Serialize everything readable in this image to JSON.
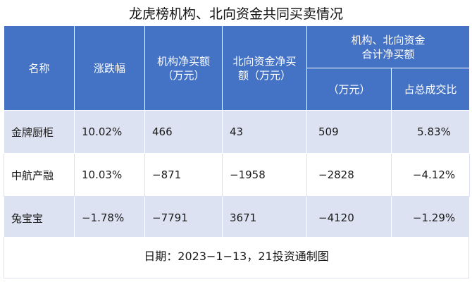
{
  "title": "龙虎榜机构、北向资金共同买卖情况",
  "headers": {
    "name": "名称",
    "change": "涨跌幅",
    "inst_net": "机构净买额（万元）",
    "north_net": "北向资金净买额（万元）",
    "combined_group": "机构、北向资金合计净买额",
    "combined_amount": "（万元）",
    "combined_ratio": "占总成交比"
  },
  "rows": [
    {
      "name": "金牌厨柜",
      "change": "10.02%",
      "inst_net": "466",
      "north_net": "43",
      "combined_amount": "509",
      "combined_ratio": "5.83%"
    },
    {
      "name": "中航产融",
      "change": "10.03%",
      "inst_net": "−871",
      "north_net": "−1958",
      "combined_amount": "−2828",
      "combined_ratio": "−4.12%"
    },
    {
      "name": "兔宝宝",
      "change": "−1.78%",
      "inst_net": "−7791",
      "north_net": "3671",
      "combined_amount": "−4120",
      "combined_ratio": "−1.29%"
    }
  ],
  "footer": "日期：2023−1−13，21投资通制图",
  "colors": {
    "header_bg": "#4472c4",
    "stripe": "#dde2f2"
  }
}
